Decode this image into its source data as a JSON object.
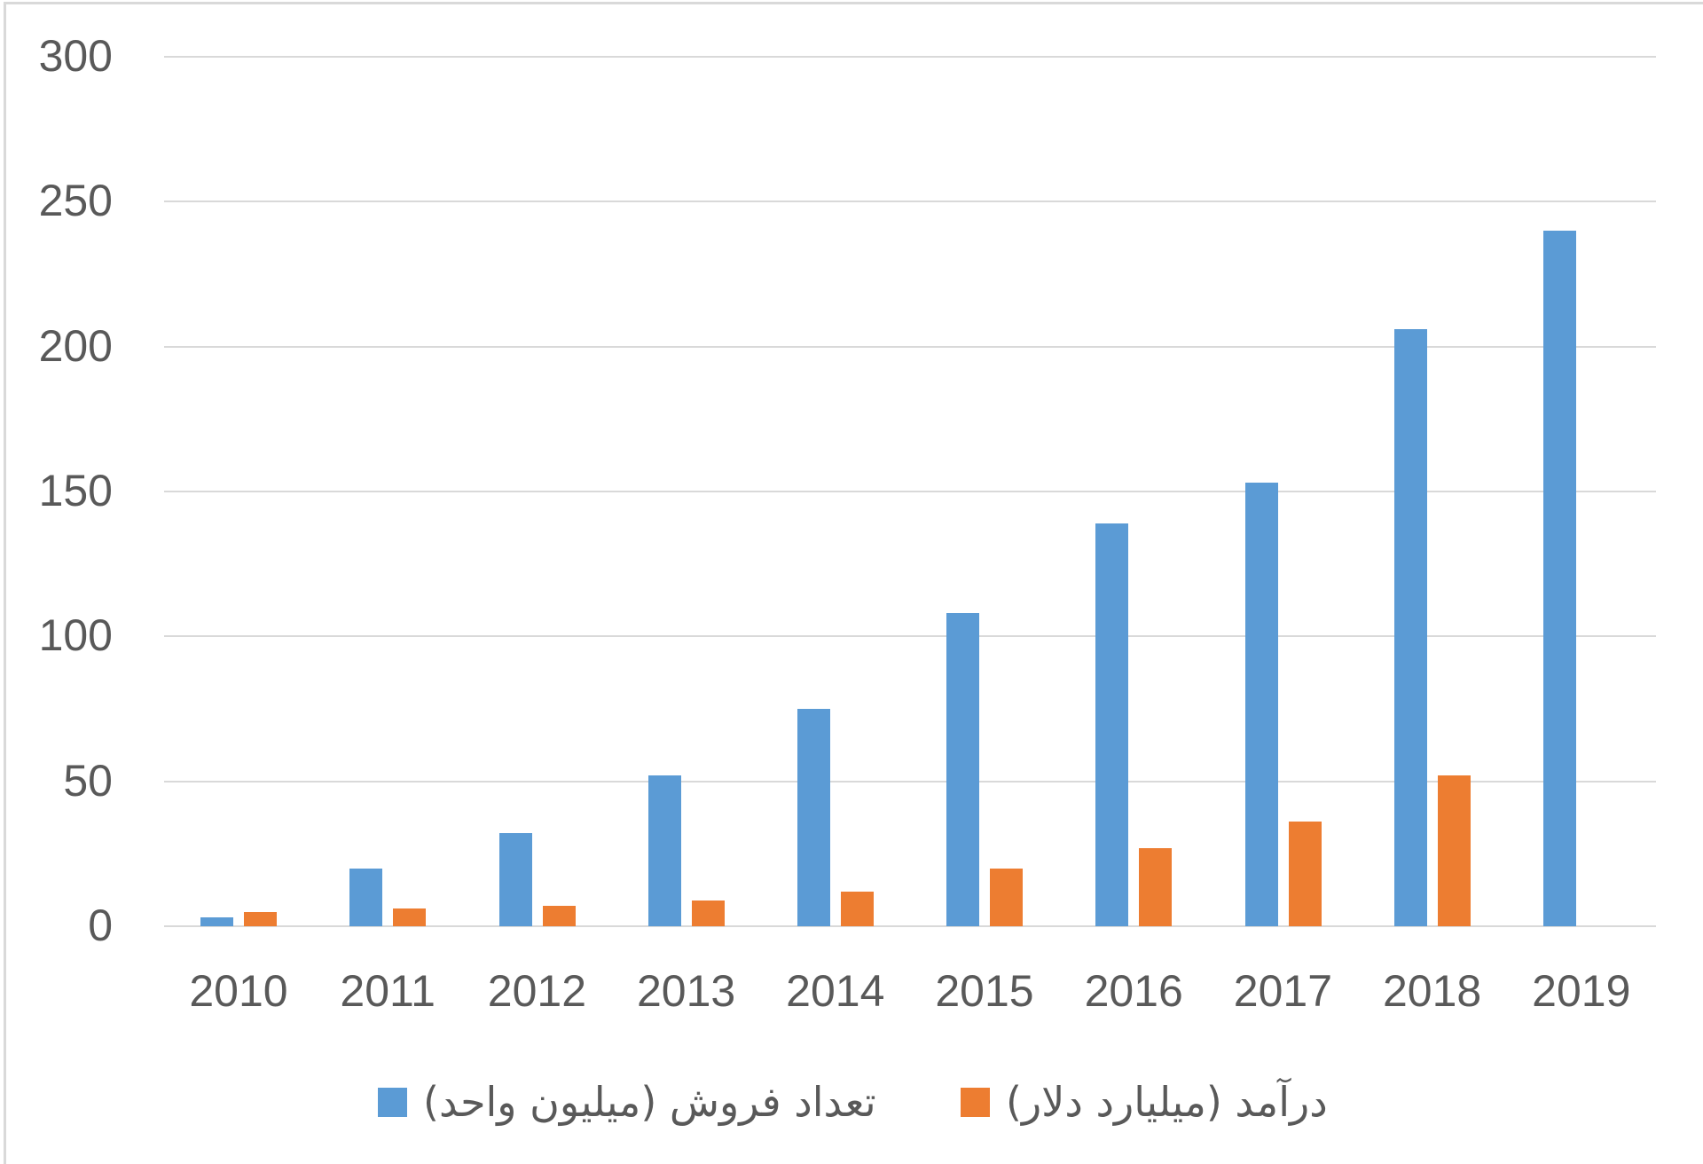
{
  "chart_data": {
    "type": "bar",
    "title": "",
    "xlabel": "",
    "ylabel": "",
    "ylim": [
      0,
      300
    ],
    "yticks": [
      0,
      50,
      100,
      150,
      200,
      250,
      300
    ],
    "grid": true,
    "legend_position": "bottom",
    "categories": [
      "2010",
      "2011",
      "2012",
      "2013",
      "2014",
      "2015",
      "2016",
      "2017",
      "2018",
      "2019"
    ],
    "series": [
      {
        "name": "تعداد فروش (میلیون واحد)",
        "color": "#5b9bd5",
        "values": [
          3,
          20,
          32,
          52,
          75,
          108,
          139,
          153,
          206,
          240
        ]
      },
      {
        "name": "درآمد (میلیارد دلار)",
        "color": "#ed7d31",
        "values": [
          5,
          6,
          7,
          9,
          12,
          20,
          27,
          36,
          52,
          null
        ]
      }
    ]
  },
  "colors": {
    "gridline": "#d9d9d9",
    "text": "#595959",
    "background": "#ffffff"
  }
}
